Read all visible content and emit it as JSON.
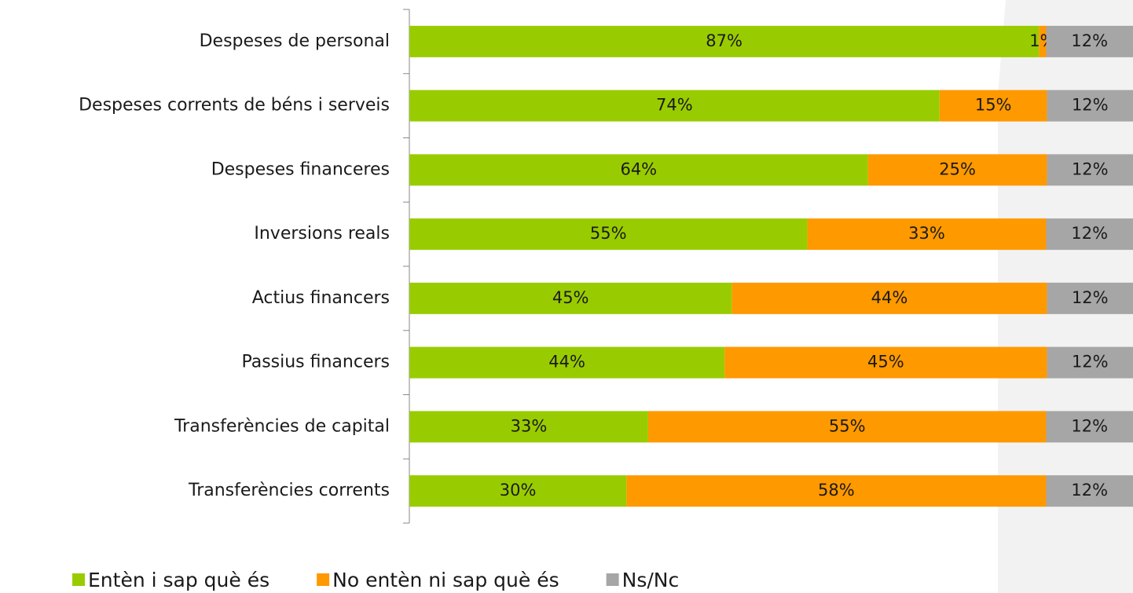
{
  "chart_data": {
    "type": "stacked_barh",
    "categories": [
      "Despeses de personal",
      "Despeses corrents de béns i serveis",
      "Despeses financeres",
      "Inversions reals",
      "Actius financers",
      "Passius financers",
      "Transferències de capital",
      "Transferències corrents"
    ],
    "series": [
      {
        "name": "Entèn i sap què és",
        "color": "#99cc00",
        "values": [
          87,
          74,
          64,
          55,
          45,
          44,
          33,
          30
        ],
        "value_labels": [
          "87%",
          "74%",
          "64%",
          "55%",
          "45%",
          "44%",
          "33%",
          "30%"
        ]
      },
      {
        "name": "No entèn ni sap què és",
        "color": "#ff9900",
        "values": [
          1,
          15,
          25,
          33,
          44,
          45,
          55,
          58
        ],
        "value_labels": [
          "1%",
          "15%",
          "25%",
          "33%",
          "44%",
          "45%",
          "55%",
          "58%"
        ]
      },
      {
        "name": "Ns/Nc",
        "color": "#a6a6a6",
        "values": [
          12,
          12,
          12,
          12,
          12,
          12,
          12,
          12
        ],
        "value_labels": [
          "12%",
          "12%",
          "12%",
          "12%",
          "12%",
          "12%",
          "12%",
          "12%"
        ]
      }
    ]
  }
}
